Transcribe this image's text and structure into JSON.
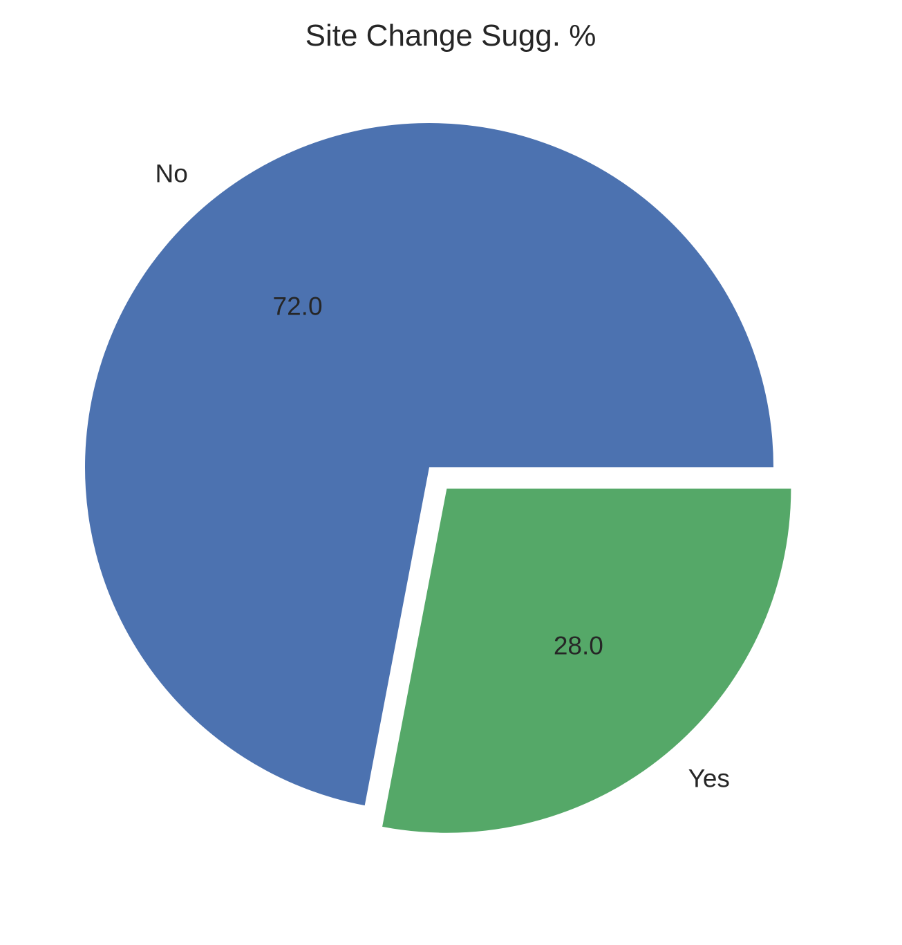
{
  "chart_data": {
    "type": "pie",
    "title": "Site Change Sugg. %",
    "categories": [
      "No",
      "Yes"
    ],
    "values": [
      72.0,
      28.0
    ],
    "value_labels": [
      "72.0",
      "28.0"
    ],
    "colors": [
      "#4c72b0",
      "#55a868"
    ],
    "exploded": [
      false,
      true
    ],
    "start_angle_deg": 0,
    "direction": "counterclockwise"
  }
}
